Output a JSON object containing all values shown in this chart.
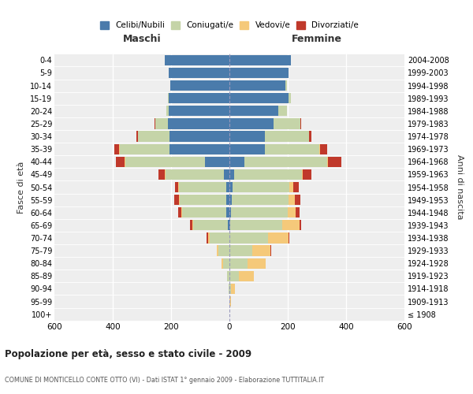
{
  "age_groups": [
    "100+",
    "95-99",
    "90-94",
    "85-89",
    "80-84",
    "75-79",
    "70-74",
    "65-69",
    "60-64",
    "55-59",
    "50-54",
    "45-49",
    "40-44",
    "35-39",
    "30-34",
    "25-29",
    "20-24",
    "15-19",
    "10-14",
    "5-9",
    "0-4"
  ],
  "birth_years": [
    "≤ 1908",
    "1909-1913",
    "1914-1918",
    "1919-1923",
    "1924-1928",
    "1929-1933",
    "1934-1938",
    "1939-1943",
    "1944-1948",
    "1949-1953",
    "1954-1958",
    "1959-1963",
    "1964-1968",
    "1969-1973",
    "1974-1978",
    "1979-1983",
    "1984-1988",
    "1989-1993",
    "1994-1998",
    "1999-2003",
    "2004-2008"
  ],
  "maschi_celibi": [
    0,
    0,
    0,
    0,
    0,
    0,
    0,
    5,
    10,
    12,
    12,
    18,
    85,
    205,
    205,
    212,
    207,
    207,
    202,
    207,
    222
  ],
  "maschi_coniugati": [
    0,
    0,
    3,
    8,
    22,
    38,
    68,
    118,
    152,
    158,
    162,
    202,
    272,
    172,
    108,
    42,
    10,
    4,
    2,
    0,
    0
  ],
  "maschi_vedovi": [
    0,
    0,
    0,
    0,
    6,
    6,
    6,
    5,
    4,
    2,
    2,
    2,
    2,
    2,
    0,
    0,
    0,
    0,
    0,
    0,
    0
  ],
  "maschi_divorziati": [
    0,
    0,
    0,
    0,
    0,
    0,
    4,
    6,
    10,
    16,
    10,
    20,
    30,
    16,
    6,
    4,
    0,
    0,
    0,
    0,
    0
  ],
  "femmine_nubili": [
    0,
    0,
    0,
    0,
    0,
    0,
    0,
    4,
    6,
    8,
    10,
    16,
    52,
    122,
    122,
    152,
    167,
    202,
    192,
    202,
    212
  ],
  "femmine_coniugate": [
    0,
    0,
    6,
    32,
    62,
    78,
    132,
    177,
    195,
    195,
    195,
    232,
    282,
    185,
    150,
    90,
    30,
    10,
    4,
    0,
    0
  ],
  "femmine_vedove": [
    0,
    6,
    12,
    52,
    62,
    62,
    70,
    60,
    26,
    20,
    14,
    4,
    4,
    4,
    0,
    0,
    0,
    0,
    0,
    0,
    0
  ],
  "femmine_divorziate": [
    0,
    0,
    0,
    0,
    0,
    4,
    4,
    4,
    14,
    20,
    20,
    30,
    45,
    25,
    10,
    4,
    0,
    0,
    0,
    0,
    0
  ],
  "color_celibi": "#4a7bab",
  "color_coniugati": "#c5d4a8",
  "color_vedovi": "#f5c97a",
  "color_divorziati": "#c0392b",
  "title": "Popolazione per età, sesso e stato civile - 2009",
  "subtitle": "COMUNE DI MONTICELLO CONTE OTTO (VI) - Dati ISTAT 1° gennaio 2009 - Elaborazione TUTTITALIA.IT",
  "ylabel_left": "Fasce di età",
  "ylabel_right": "Anni di nascita",
  "xlim": 600,
  "legend_labels": [
    "Celibi/Nubili",
    "Coniugati/e",
    "Vedovi/e",
    "Divorziati/e"
  ],
  "maschi_label": "Maschi",
  "femmine_label": "Femmine"
}
